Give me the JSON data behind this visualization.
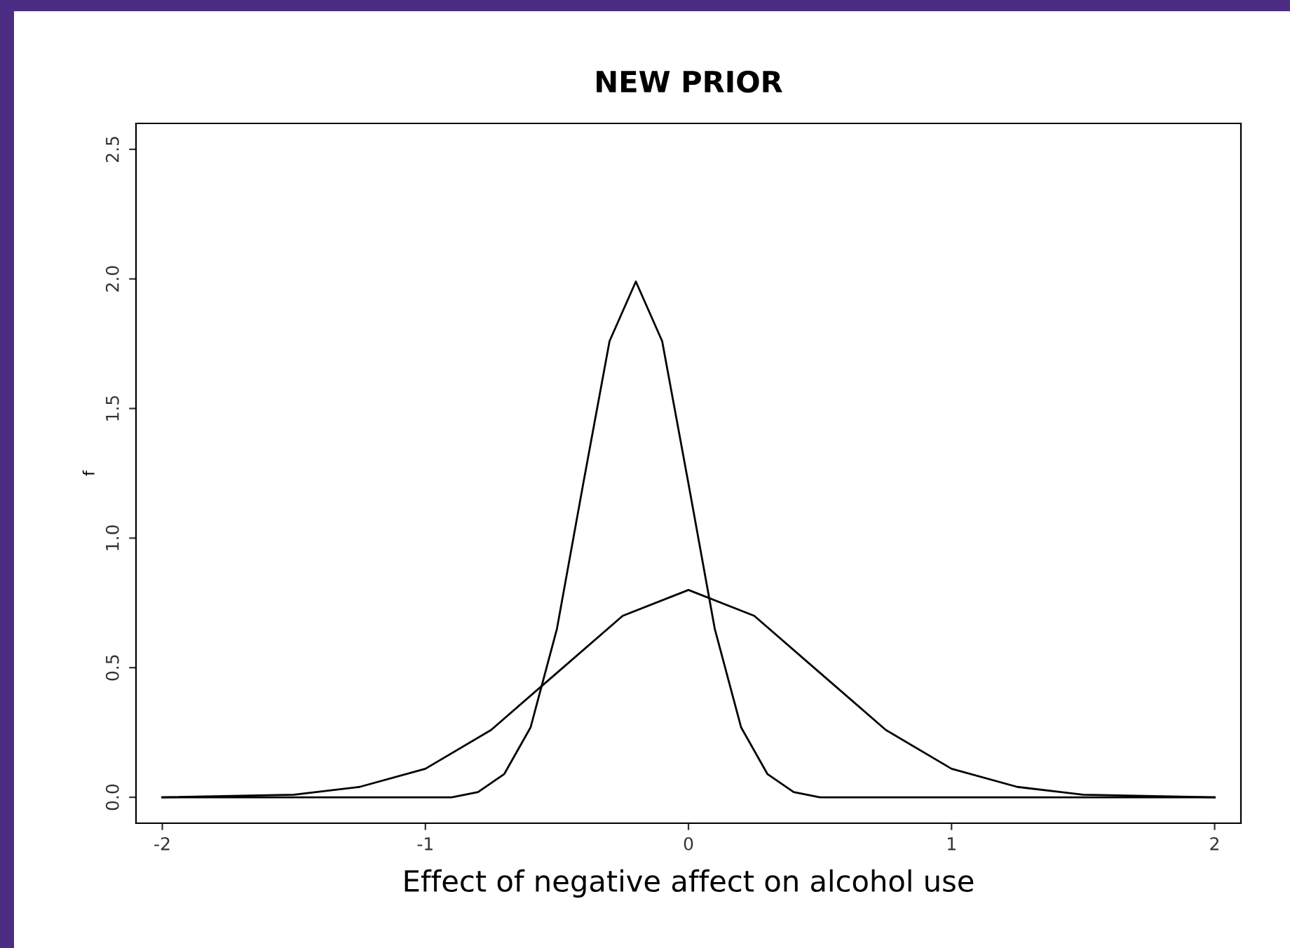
{
  "chart_data": {
    "type": "line",
    "title": "NEW PRIOR",
    "xlabel": "Effect of negative affect on alcohol use",
    "ylabel": "f",
    "series": [
      {
        "color": "#000000",
        "x": [
          -2,
          -1.5,
          -1.25,
          -1,
          -0.75,
          -0.5,
          -0.25,
          0,
          0.25,
          0.5,
          0.75,
          1,
          1.25,
          1.5,
          2
        ],
        "values": [
          0.0,
          0.01,
          0.04,
          0.11,
          0.26,
          0.48,
          0.7,
          0.8,
          0.7,
          0.48,
          0.26,
          0.11,
          0.04,
          0.01,
          0.0
        ]
      },
      {
        "color": "#000000",
        "x": [
          -2,
          -1.0,
          -0.9,
          -0.8,
          -0.7,
          -0.6,
          -0.5,
          -0.4,
          -0.3,
          -0.2,
          -0.1,
          0,
          0.1,
          0.2,
          0.3,
          0.4,
          0.5,
          0.6,
          2
        ],
        "values": [
          0.0,
          0.0,
          0.0,
          0.02,
          0.09,
          0.27,
          0.65,
          1.21,
          1.76,
          1.99,
          1.76,
          1.21,
          0.65,
          0.27,
          0.09,
          0.02,
          0.0,
          0.0,
          0.0
        ]
      }
    ],
    "xlim": [
      -2.1,
      2.1
    ],
    "ylim": [
      -0.1,
      2.6
    ],
    "xticks": [
      -2,
      -1,
      0,
      1,
      2
    ],
    "yticks": [
      {
        "value": 0,
        "label": "0.0"
      },
      0.5,
      {
        "value": 1,
        "label": "1.0"
      },
      1.5,
      {
        "value": 2,
        "label": "2.0"
      },
      2.5
    ],
    "grid": false,
    "marker": "none",
    "line_style": "solid"
  }
}
